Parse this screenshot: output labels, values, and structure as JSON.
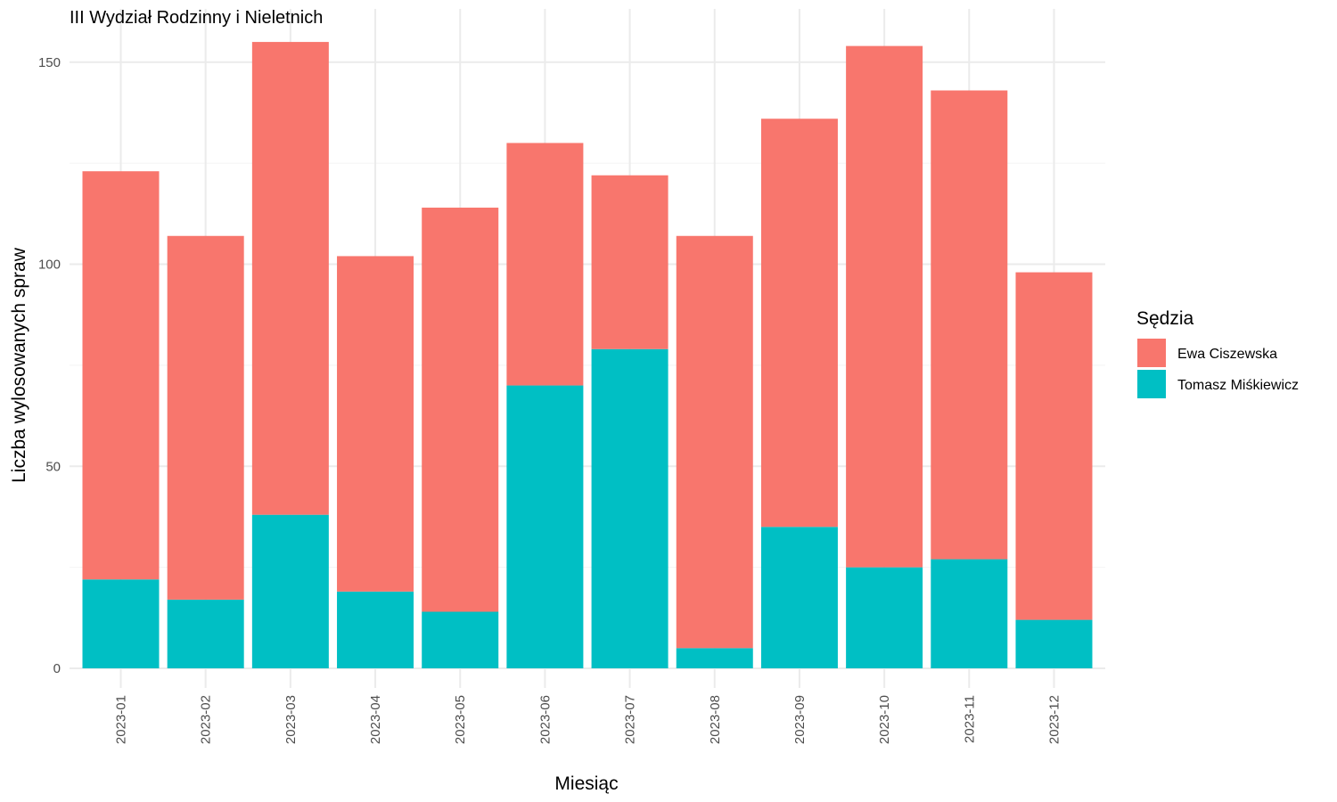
{
  "chart_data": {
    "type": "bar",
    "stacked": true,
    "title": "III Wydział Rodzinny i Nieletnich",
    "xlabel": "Miesiąc",
    "ylabel": "Liczba wylosowanych spraw",
    "ylim": [
      0,
      160
    ],
    "yticks": [
      0,
      50,
      100,
      150
    ],
    "grid": true,
    "legend_title": "Sędzia",
    "legend_position": "right",
    "categories": [
      "2023-01",
      "2023-02",
      "2023-03",
      "2023-04",
      "2023-05",
      "2023-06",
      "2023-07",
      "2023-08",
      "2023-09",
      "2023-10",
      "2023-11",
      "2023-12"
    ],
    "series": [
      {
        "name": "Tomasz Miśkiewicz",
        "color": "#00BFC4",
        "values": [
          22,
          17,
          38,
          19,
          14,
          70,
          79,
          5,
          35,
          25,
          27,
          12
        ]
      },
      {
        "name": "Ewa Ciszewska",
        "color": "#F8766D",
        "values": [
          101,
          90,
          117,
          83,
          100,
          60,
          43,
          102,
          101,
          129,
          116,
          86
        ]
      }
    ],
    "legend_order": [
      "Ewa Ciszewska",
      "Tomasz Miśkiewicz"
    ]
  }
}
